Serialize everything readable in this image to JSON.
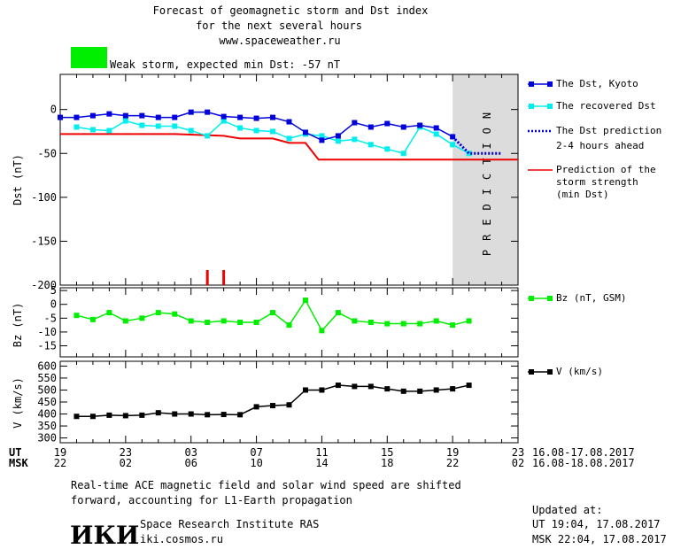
{
  "header": {
    "line1": "Forecast of geomagnetic storm and Dst index",
    "line2": "for the next several hours",
    "line3": "www.spaceweather.ru",
    "status_text": "Weak storm, expected min Dst: -57 nT",
    "status_color": "#00ee00"
  },
  "prediction_label": "PREDICTION",
  "legend": {
    "dst_kyoto": "The Dst, Kyoto",
    "dst_recovered": "The recovered Dst",
    "dst_pred_1": "The Dst prediction",
    "dst_pred_2": "2-4 hours ahead",
    "storm_1": "Prediction of the",
    "storm_2": "storm strength",
    "storm_3": "(min Dst)",
    "bz": "Bz (nT, GSM)",
    "v": "V (km/s)"
  },
  "axes": {
    "ut_label": "UT",
    "msk_label": "MSK",
    "ut_ticks": [
      "19",
      "23",
      "03",
      "07",
      "11",
      "15",
      "19",
      "23"
    ],
    "msk_ticks": [
      "22",
      "02",
      "06",
      "10",
      "14",
      "18",
      "22",
      "02"
    ],
    "ut_range": "16.08-17.08.2017",
    "msk_range": "16.08-18.08.2017"
  },
  "footer": {
    "note1": "Real-time ACE magnetic field and solar wind speed are shifted",
    "note2": "forward, accounting for L1-Earth propagation",
    "logo": "ИКИ",
    "org": "Space Research Institute RAS",
    "url": "iki.cosmos.ru",
    "updated_label": "Updated at:",
    "updated_ut": "UT  19:04, 17.08.2017",
    "updated_msk": "MSK 22:04, 17.08.2017"
  },
  "chart_data": [
    {
      "type": "line",
      "panel": "dst",
      "ylabel": "Dst (nT)",
      "ylim": [
        -200,
        40
      ],
      "yticks": [
        0,
        -50,
        -100,
        -150,
        -200
      ],
      "x_unit": "hours after 19 UT 16.08.2017",
      "xlim": [
        0,
        28
      ],
      "prediction_window": [
        24,
        28
      ],
      "colors": {
        "kyoto": "#0000dd",
        "recovered": "#00eeee",
        "prediction": "#0000dd",
        "storm": "#ee0000"
      },
      "series": [
        {
          "name": "The Dst, Kyoto",
          "x": [
            0,
            1,
            2,
            3,
            4,
            5,
            6,
            7,
            8,
            9,
            10,
            11,
            12,
            13,
            14,
            15,
            16,
            17,
            18,
            19,
            20,
            21,
            22,
            23,
            24
          ],
          "y": [
            -9,
            -9,
            -7,
            -5,
            -7,
            -7,
            -9,
            -9,
            -3,
            -3,
            -8,
            -9,
            -10,
            -9,
            -14,
            -26,
            -35,
            -30,
            -15,
            -20,
            -16,
            -20,
            -18,
            -21,
            -31
          ]
        },
        {
          "name": "The recovered Dst",
          "x": [
            1,
            2,
            3,
            4,
            5,
            6,
            7,
            8,
            9,
            10,
            11,
            12,
            13,
            14,
            15,
            16,
            17,
            18,
            19,
            20,
            21,
            22,
            23,
            24,
            25
          ],
          "y": [
            -20,
            -23,
            -24,
            -13,
            -18,
            -19,
            -19,
            -24,
            -30,
            -13,
            -21,
            -24,
            -25,
            -33,
            -28,
            -30,
            -36,
            -34,
            -40,
            -45,
            -50,
            -20,
            -28,
            -40,
            -50
          ]
        },
        {
          "name": "The Dst prediction",
          "x": [
            24,
            25,
            26,
            27
          ],
          "y": [
            -31,
            -50,
            -50,
            -50
          ]
        },
        {
          "name": "Prediction of the storm strength",
          "x": [
            0,
            7,
            10,
            11,
            13,
            14,
            15,
            15.8,
            28
          ],
          "y": [
            -28,
            -28,
            -30,
            -33,
            -33,
            -38,
            -38,
            -57,
            -57
          ]
        }
      ],
      "markers": [
        {
          "x": 9,
          "label": "|"
        },
        {
          "x": 10,
          "label": "|"
        }
      ]
    },
    {
      "type": "line",
      "panel": "bz",
      "ylabel": "Bz (nT)",
      "ylim": [
        -19,
        6
      ],
      "yticks": [
        5,
        0,
        -5,
        -10,
        -15
      ],
      "color": "#00ee00",
      "series": [
        {
          "name": "Bz (nT, GSM)",
          "x": [
            1,
            2,
            3,
            4,
            5,
            6,
            7,
            8,
            9,
            10,
            11,
            12,
            13,
            14,
            15,
            16,
            17,
            18,
            19,
            20,
            21,
            22,
            23,
            24,
            25
          ],
          "y": [
            -4,
            -5.5,
            -3,
            -6,
            -5,
            -3,
            -3.5,
            -6,
            -6.5,
            -6,
            -6.5,
            -6.5,
            -3,
            -7.5,
            1.5,
            -9.5,
            -3,
            -6,
            -6.5,
            -7,
            -7,
            -7,
            -6,
            -7.5,
            -6
          ]
        }
      ]
    },
    {
      "type": "line",
      "panel": "v",
      "ylabel": "V (km/s)",
      "ylim": [
        280,
        620
      ],
      "yticks": [
        600,
        550,
        500,
        450,
        400,
        350,
        300
      ],
      "color": "#000000",
      "series": [
        {
          "name": "V (km/s)",
          "x": [
            1,
            2,
            3,
            4,
            5,
            6,
            7,
            8,
            9,
            10,
            11,
            12,
            13,
            14,
            15,
            16,
            17,
            18,
            19,
            20,
            21,
            22,
            23,
            24,
            25
          ],
          "y": [
            390,
            390,
            395,
            393,
            395,
            405,
            400,
            400,
            397,
            398,
            397,
            430,
            435,
            438,
            500,
            500,
            520,
            515,
            515,
            505,
            495,
            495,
            500,
            505,
            520
          ]
        }
      ]
    }
  ]
}
